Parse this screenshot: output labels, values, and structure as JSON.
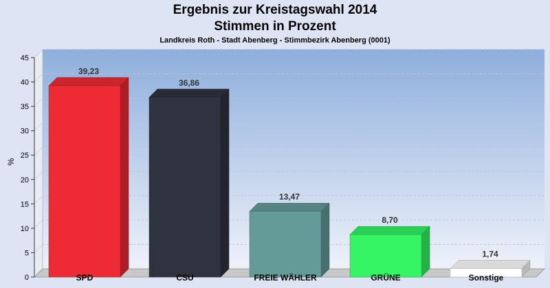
{
  "chart_data": {
    "type": "bar",
    "title": "Ergebnis zur Kreistagswahl 2014",
    "title2": "Stimmen in Prozent",
    "subtitle": "Landkreis Roth - Stadt Abenberg - Stimmbezirk Abenberg (0001)",
    "ylabel": "%",
    "ylim": [
      0,
      45
    ],
    "yticks": [
      0,
      5,
      10,
      15,
      20,
      25,
      30,
      35,
      40,
      45
    ],
    "categories": [
      "SPD",
      "CSU",
      "FREIE WÄHLER",
      "GRÜNE",
      "Sonstige"
    ],
    "values": [
      39.23,
      36.86,
      13.47,
      8.7,
      1.74
    ],
    "value_labels": [
      "39,23",
      "36,86",
      "13,47",
      "8,70",
      "1,74"
    ],
    "colors": [
      "#ee2a35",
      "#2f3340",
      "#649a98",
      "#35f565",
      "#ffffff"
    ],
    "grid": true
  }
}
